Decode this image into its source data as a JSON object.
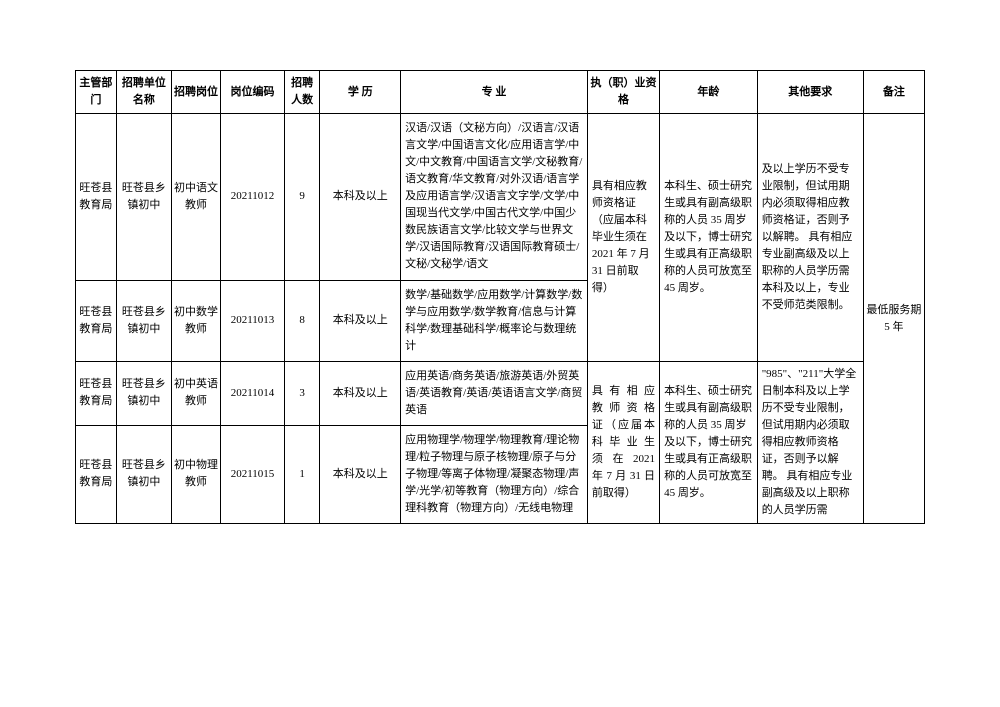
{
  "headers": {
    "dept": "主管部门",
    "unit": "招聘单位名称",
    "post": "招聘岗位",
    "code": "岗位编码",
    "num": "招聘人数",
    "edu": "学  历",
    "major": "专    业",
    "qual": "执（职）业资格",
    "age": "年龄",
    "other": "其他要求",
    "remark": "备注"
  },
  "rows": [
    {
      "dept": "旺苍县教育局",
      "unit": "旺苍县乡镇初中",
      "post": "初中语文教师",
      "code": "20211012",
      "num": "9",
      "edu": "本科及以上",
      "major": "汉语/汉语（文秘方向）/汉语言/汉语言文学/中国语言文化/应用语言学/中文/中文教育/中国语言文学/文秘教育/语文教育/华文教育/对外汉语/语言学及应用语言学/汉语言文字学/文学/中国现当代文学/中国古代文学/中国少数民族语言文学/比较文学与世界文学/汉语国际教育/汉语国际教育硕士/文秘/文秘学/语文"
    },
    {
      "dept": "旺苍县教育局",
      "unit": "旺苍县乡镇初中",
      "post": "初中数学教师",
      "code": "20211013",
      "num": "8",
      "edu": "本科及以上",
      "major": "数学/基础数学/应用数学/计算数学/数学与应用数学/数学教育/信息与计算科学/数理基础科学/概率论与数理统计"
    },
    {
      "dept": "旺苍县教育局",
      "unit": "旺苍县乡镇初中",
      "post": "初中英语教师",
      "code": "20211014",
      "num": "3",
      "edu": "本科及以上",
      "major": "应用英语/商务英语/旅游英语/外贸英语/英语教育/英语/英语语言文学/商贸英语"
    },
    {
      "dept": "旺苍县教育局",
      "unit": "旺苍县乡镇初中",
      "post": "初中物理教师",
      "code": "20211015",
      "num": "1",
      "edu": "本科及以上",
      "major": "应用物理学/物理学/物理教育/理论物理/粒子物理与原子核物理/原子与分子物理/等离子体物理/凝聚态物理/声学/光学/初等教育（物理方向）/综合理科教育（物理方向）/无线电物理"
    }
  ],
  "merged": {
    "qual_top": "具有相应教师资格证（应届本科毕业生须在 2021 年 7 月 31 日前取得）",
    "age_top": "本科生、硕士研究生或具有副高级职称的人员 35 周岁及以下，博士研究生或具有正高级职称的人员可放宽至 45 周岁。",
    "other_top": "及以上学历不受专业限制，但试用期内必须取得相应教师资格证，否则予以解聘。  具有相应专业副高级及以上职称的人员学历需本科及以上，专业不受师范类限制。",
    "qual_bottom": "具 有 相 应 教 师 资 格 证（应届本科 毕 业 生 须 在  2021 年 7 月 31 日前取得）",
    "age_bottom": "本科生、硕士研究生或具有副高级职称的人员 35 周岁及以下，博士研究生或具有正高级职称的人员可放宽至 45 周岁。",
    "other_bottom": "\"985\"、\"211\"大学全日制本科及以上学历不受专业限制，但试用期内必须取得相应教师资格证，否则予以解聘。  具有相应专业副高级及以上职称的人员学历需",
    "remark": "最低服务期 5 年"
  }
}
